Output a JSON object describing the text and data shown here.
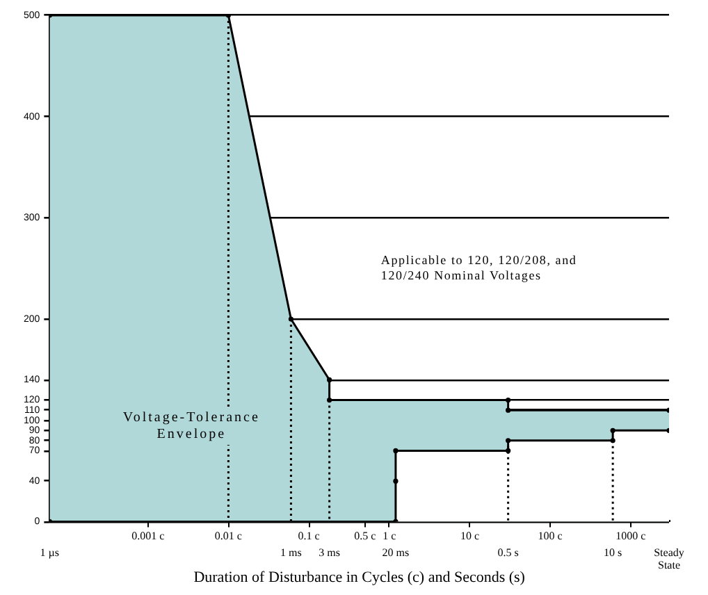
{
  "chart_data": {
    "type": "area",
    "xlabel": "Duration of Disturbance in Cycles (c) and Seconds (s)",
    "annotations": [
      "Applicable to 120, 120/208, and 120/240 Nominal Voltages",
      "Voltage-Tolerance Envelope",
      {
        "text": "1 µs",
        "x": 6e-05,
        "y": 0
      },
      {
        "text": "1 ms",
        "x": 0.06,
        "y": 0
      },
      {
        "text": "3 ms",
        "x": 0.18,
        "y": 0
      },
      {
        "text": "20 ms",
        "x": 1.2,
        "y": 0
      },
      {
        "text": "0.5 s",
        "x": 30,
        "y": 0
      },
      {
        "text": "10 s",
        "x": 600,
        "y": 0
      },
      {
        "text": "Steady State",
        "x": 3000,
        "y": 0
      }
    ],
    "series": [
      {
        "color": "#b0d8d8",
        "marker": "circle",
        "x": [
          6e-05,
          0.01,
          0.06,
          0.18,
          0.18,
          30,
          30,
          3000
        ],
        "values": [
          500,
          500,
          200,
          140,
          120,
          120,
          110,
          110
        ]
      },
      {
        "color": "#ffffff",
        "marker": "circle",
        "x": [
          6e-05,
          1.2,
          1.2,
          30,
          30,
          600,
          600,
          3000
        ],
        "values": [
          0,
          0,
          70,
          70,
          80,
          80,
          90,
          90
        ]
      },
      {
        "type": "line",
        "color": "#000000",
        "line_style": "dotted",
        "x": [
          0.01,
          0.01
        ],
        "values": [
          500,
          0
        ]
      },
      {
        "type": "line",
        "color": "#000000",
        "line_style": "dotted",
        "x": [
          0.06,
          0.06
        ],
        "values": [
          200,
          0
        ]
      },
      {
        "type": "line",
        "color": "#000000",
        "line_style": "dotted",
        "x": [
          0.18,
          0.18
        ],
        "values": [
          120,
          0
        ]
      },
      {
        "type": "line",
        "color": "#000000",
        "line_style": "dotted",
        "x": [
          30,
          30
        ],
        "values": [
          80,
          0
        ]
      },
      {
        "type": "line",
        "color": "#000000",
        "line_style": "dotted",
        "x": [
          600,
          600
        ],
        "values": [
          80,
          0
        ]
      },
      {
        "type": "scatter",
        "color": "#000000",
        "marker": "circle",
        "x": [
          1.2
        ],
        "values": [
          40
        ]
      }
    ],
    "log": "x",
    "xlim": [
      6e-05,
      3000
    ],
    "xticks": [
      {
        "value": 0.001,
        "label": "0.001 c"
      },
      {
        "value": 0.01,
        "label": "0.01 c"
      },
      {
        "value": 0.1,
        "label": "0.1 c"
      },
      {
        "value": 0.5,
        "label": "0.5 c"
      },
      {
        "value": 1,
        "label": "1 c"
      },
      {
        "value": 10,
        "label": "10 c"
      },
      {
        "value": 100,
        "label": "100 c"
      },
      {
        "value": 1000,
        "label": "1000 c"
      }
    ],
    "ylim": [
      0,
      500
    ],
    "yticks": [
      0,
      40,
      70,
      80,
      90,
      100,
      110,
      120,
      140,
      200,
      300,
      400,
      500
    ],
    "grid": "y"
  }
}
